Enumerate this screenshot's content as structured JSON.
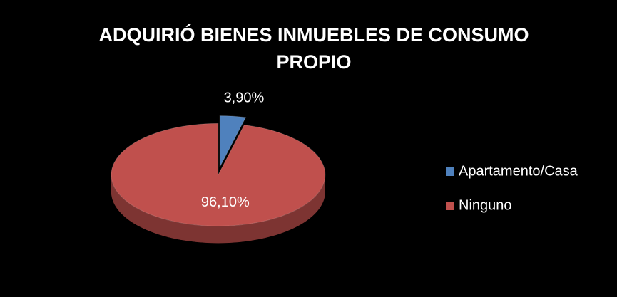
{
  "chart_data": {
    "type": "pie",
    "title": "ADQUIRIÓ BIENES INMUEBLES DE CONSUMO PROPIO",
    "categories": [
      "Apartamento/Casa",
      "Ninguno"
    ],
    "values": [
      3.9,
      96.1
    ],
    "value_labels": [
      "3,90%",
      "96,10%"
    ],
    "colors": [
      "#4f81bd",
      "#c0504d"
    ],
    "legend": "right"
  }
}
